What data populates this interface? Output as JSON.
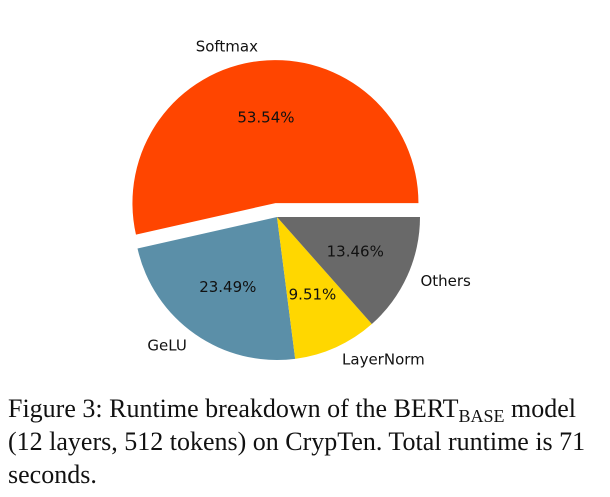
{
  "chart_data": {
    "type": "pie",
    "start_angle_deg": 0,
    "direction": "counterclockwise",
    "explode": [
      "Softmax"
    ],
    "slices": [
      {
        "label": "Softmax",
        "value": 53.54,
        "pct_label": "53.54%",
        "color": "#FF4500"
      },
      {
        "label": "GeLU",
        "value": 23.49,
        "pct_label": "23.49%",
        "color": "#5B8FA8"
      },
      {
        "label": "LayerNorm",
        "value": 9.51,
        "pct_label": "9.51%",
        "color": "#FFD700"
      },
      {
        "label": "Others",
        "value": 13.46,
        "pct_label": "13.46%",
        "color": "#696969"
      }
    ]
  },
  "caption": {
    "prefix": "Figure 3: Runtime breakdown of the BERT",
    "subscript": "BASE",
    "suffix": " model (12 layers, 512 tokens) on CrypTen. Total runtime is 71 seconds."
  }
}
